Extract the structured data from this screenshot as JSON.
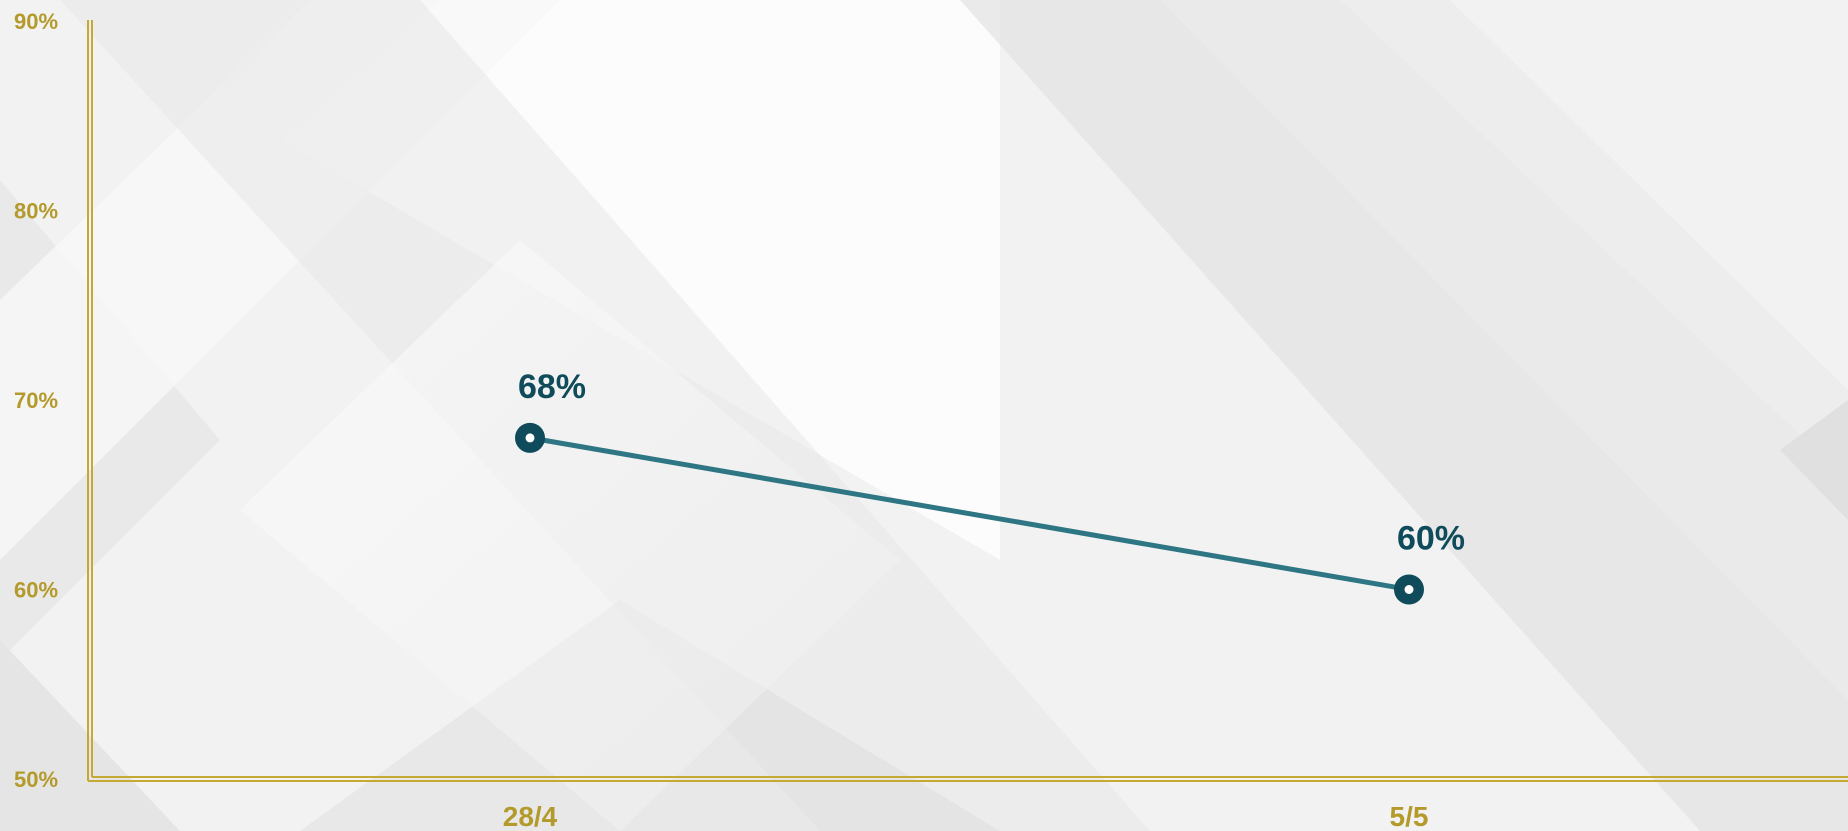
{
  "colors": {
    "axis": "#c4a934",
    "tick_text": "#b39a2a",
    "line": "#2e7683",
    "marker": "#0f4b5a",
    "data_label": "#0f4b5a",
    "background": "#f2f2f2"
  },
  "chart_data": {
    "type": "line",
    "categories": [
      "28/4",
      "5/5"
    ],
    "series": [
      {
        "values": [
          68,
          60
        ]
      }
    ],
    "data_labels": [
      "68%",
      "60%"
    ],
    "y_ticks": [
      "50%",
      "60%",
      "70%",
      "80%",
      "90%"
    ],
    "y_tick_values": [
      50,
      60,
      70,
      80,
      90
    ],
    "ylim": [
      50,
      90
    ],
    "grid": false,
    "legend": "none",
    "title": "",
    "xlabel": "",
    "ylabel": ""
  }
}
